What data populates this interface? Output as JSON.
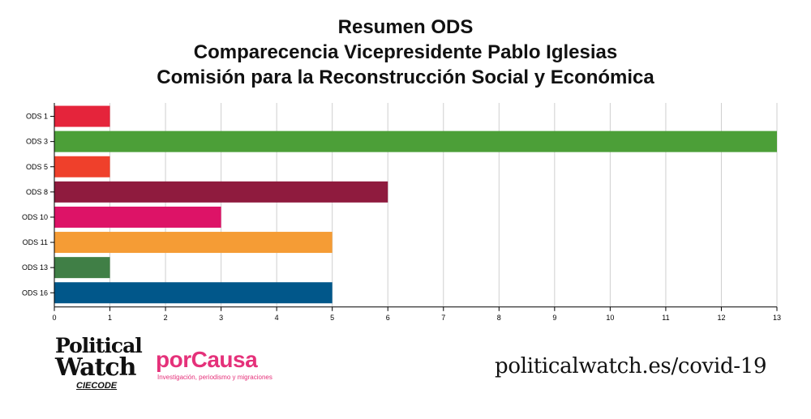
{
  "title_lines": [
    "Resumen ODS",
    "Comparecencia Vicepresidente Pablo Iglesias",
    "Comisión para la Reconstrucción Social y Económica"
  ],
  "chart_data": {
    "type": "bar",
    "orientation": "horizontal",
    "categories": [
      "ODS 1",
      "ODS 3",
      "ODS 5",
      "ODS 8",
      "ODS 10",
      "ODS 11",
      "ODS 13",
      "ODS 16"
    ],
    "values": [
      1,
      13,
      1,
      6,
      3,
      5,
      1,
      5
    ],
    "colors": [
      "#e5243b",
      "#4c9f38",
      "#ef402b",
      "#8f1b3e",
      "#dd1367",
      "#f59c35",
      "#407f46",
      "#01578a"
    ],
    "xlim": [
      0,
      13
    ],
    "xticks": [
      0,
      1,
      2,
      3,
      4,
      5,
      6,
      7,
      8,
      9,
      10,
      11,
      12,
      13
    ],
    "grid": true,
    "title": "",
    "xlabel": "",
    "ylabel": ""
  },
  "logos": {
    "political_watch": {
      "line1": "Political",
      "line2": "Watch",
      "sub": "CIECODE"
    },
    "porcausa": {
      "name": "porCausa",
      "tagline": "Investigación, periodismo y migraciones"
    }
  },
  "website": "politicalwatch.es/covid-19"
}
